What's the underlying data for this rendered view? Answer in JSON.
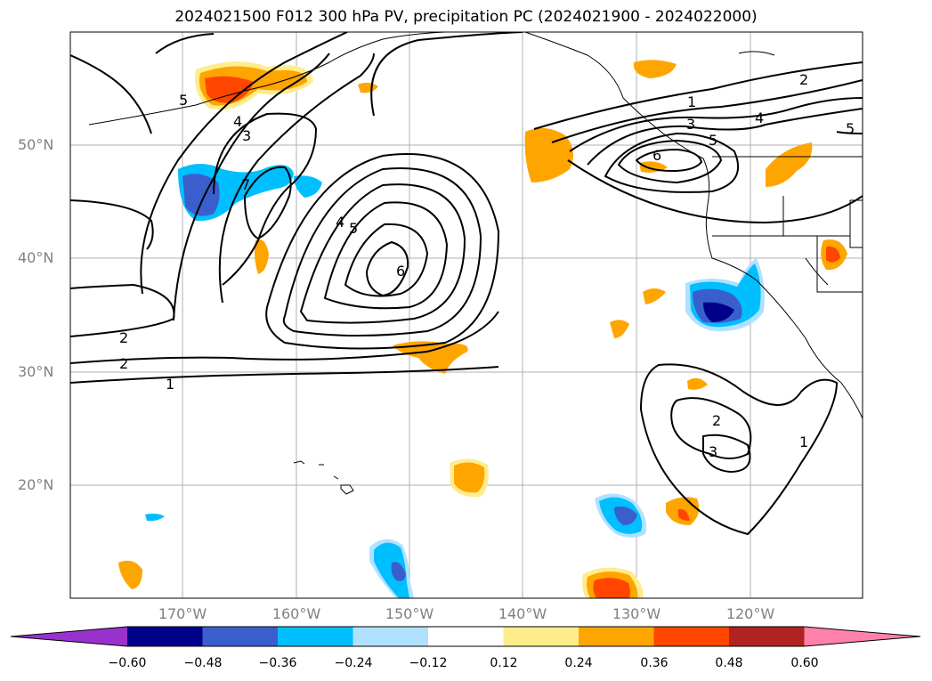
{
  "title": "2024021500 F012 300 hPa PV, precipitation PC (2024021900 - 2024022000)",
  "latitude_labels": [
    "50°N",
    "40°N",
    "30°N",
    "20°N"
  ],
  "longitude_labels": [
    "170°W",
    "160°W",
    "150°W",
    "140°W",
    "130°W",
    "120°W"
  ],
  "contour_labels": [
    "5",
    "4",
    "3",
    "7",
    "4",
    "5",
    "6",
    "2",
    "2",
    "1",
    "1",
    "3",
    "5",
    "6",
    "2",
    "4",
    "5",
    "2",
    "3",
    "1"
  ],
  "colorbar": {
    "ticks": [
      "−0.60",
      "−0.48",
      "−0.36",
      "−0.24",
      "−0.12",
      "0.12",
      "0.24",
      "0.36",
      "0.48",
      "0.60"
    ],
    "colors": [
      "#9932cc",
      "#00008b",
      "#3a5fcd",
      "#00bfff",
      "#b0e2ff",
      "#ffffff",
      "#ffec8b",
      "#ffa500",
      "#ff4500",
      "#b22222",
      "#ff82ab"
    ]
  }
}
